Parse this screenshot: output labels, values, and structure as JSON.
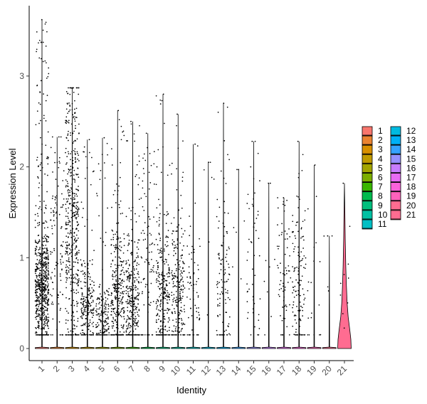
{
  "chart_data": {
    "type": "violin",
    "title": "",
    "xlabel": "Identity",
    "ylabel": "Expression Level",
    "ylim": [
      -0.16,
      3.72
    ],
    "yticks": [
      0,
      1,
      2,
      3
    ],
    "categories": [
      "1",
      "2",
      "3",
      "4",
      "5",
      "6",
      "7",
      "8",
      "9",
      "10",
      "11",
      "12",
      "13",
      "14",
      "15",
      "16",
      "17",
      "18",
      "19",
      "20",
      "21"
    ],
    "colors": [
      "#F8766D",
      "#EA8331",
      "#D89000",
      "#C09B00",
      "#A3A500",
      "#7CAE00",
      "#39B600",
      "#00BB4E",
      "#00BF7D",
      "#00C1A3",
      "#00BFC4",
      "#00BAE0",
      "#00B0F6",
      "#35A2FF",
      "#9590FF",
      "#C77CFF",
      "#E76BF3",
      "#FA62DB",
      "#FF62BC",
      "#FF6C91",
      "#FF6C91"
    ],
    "series": [
      {
        "category": "1",
        "max": 3.62,
        "nonzero_points": 700,
        "center": 0.65,
        "spread": 0.35
      },
      {
        "category": "2",
        "max": 2.33,
        "nonzero_points": 110,
        "center": 1.0,
        "spread": 0.6
      },
      {
        "category": "3",
        "max": 2.87,
        "nonzero_points": 450,
        "center": 1.3,
        "spread": 0.8
      },
      {
        "category": "4",
        "max": 2.3,
        "nonzero_points": 220,
        "center": 0.45,
        "spread": 0.25
      },
      {
        "category": "5",
        "max": 2.32,
        "nonzero_points": 170,
        "center": 0.3,
        "spread": 0.18
      },
      {
        "category": "6",
        "max": 2.62,
        "nonzero_points": 320,
        "center": 0.6,
        "spread": 0.4
      },
      {
        "category": "7",
        "max": 2.5,
        "nonzero_points": 300,
        "center": 0.5,
        "spread": 0.35
      },
      {
        "category": "8",
        "max": 2.37,
        "nonzero_points": 90,
        "center": 0.9,
        "spread": 0.6
      },
      {
        "category": "9",
        "max": 2.8,
        "nonzero_points": 280,
        "center": 0.55,
        "spread": 0.4
      },
      {
        "category": "10",
        "max": 2.58,
        "nonzero_points": 230,
        "center": 0.6,
        "spread": 0.4
      },
      {
        "category": "11",
        "max": 2.25,
        "nonzero_points": 70,
        "center": 0.6,
        "spread": 0.4
      },
      {
        "category": "12",
        "max": 2.05,
        "nonzero_points": 6,
        "center": 1.5,
        "spread": 0.4
      },
      {
        "category": "13",
        "max": 2.7,
        "nonzero_points": 110,
        "center": 0.7,
        "spread": 0.5
      },
      {
        "category": "14",
        "max": 1.97,
        "nonzero_points": 6,
        "center": 1.2,
        "spread": 0.5
      },
      {
        "category": "15",
        "max": 2.28,
        "nonzero_points": 50,
        "center": 0.8,
        "spread": 0.6
      },
      {
        "category": "16",
        "max": 1.82,
        "nonzero_points": 8,
        "center": 0.9,
        "spread": 0.6
      },
      {
        "category": "17",
        "max": 1.66,
        "nonzero_points": 70,
        "center": 0.7,
        "spread": 0.45
      },
      {
        "category": "18",
        "max": 2.28,
        "nonzero_points": 130,
        "center": 0.7,
        "spread": 0.5
      },
      {
        "category": "19",
        "max": 2.02,
        "nonzero_points": 18,
        "center": 0.6,
        "spread": 0.5
      },
      {
        "category": "20",
        "max": 1.24,
        "nonzero_points": 4,
        "center": 0.8,
        "spread": 0.5
      },
      {
        "category": "21",
        "max": 1.82,
        "nonzero_points": 9,
        "center": 0.7,
        "spread": 0.5
      }
    ],
    "legend": {
      "placement": "right",
      "columns": [
        [
          "1",
          "2",
          "3",
          "4",
          "5",
          "6",
          "7",
          "8",
          "9",
          "10",
          "11"
        ],
        [
          "12",
          "13",
          "14",
          "15",
          "16",
          "17",
          "18",
          "19",
          "20",
          "21"
        ]
      ]
    },
    "grid": false
  }
}
